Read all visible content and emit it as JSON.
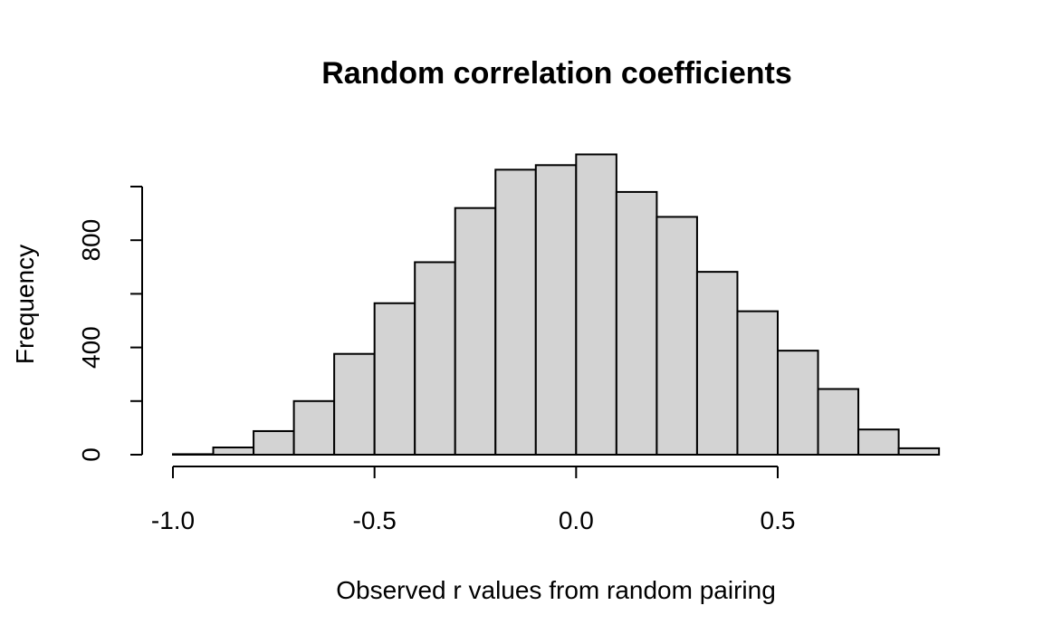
{
  "chart_data": {
    "type": "bar",
    "title": "Random correlation coefficients",
    "xlabel": "Observed r values from random pairing",
    "ylabel": "Frequency",
    "bin_edges": [
      -1.0,
      -0.9,
      -0.8,
      -0.7,
      -0.6,
      -0.5,
      -0.4,
      -0.3,
      -0.2,
      -0.1,
      0.0,
      0.1,
      0.2,
      0.3,
      0.4,
      0.5,
      0.6,
      0.7,
      0.8,
      0.9
    ],
    "values": [
      2,
      27,
      88,
      200,
      376,
      565,
      718,
      920,
      1063,
      1080,
      1120,
      980,
      887,
      682,
      535,
      388,
      245,
      94,
      24
    ],
    "xlim": [
      -1.0,
      0.9
    ],
    "ylim": [
      0,
      1120
    ],
    "x_ticks": [
      -1.0,
      -0.5,
      0.0,
      0.5
    ],
    "x_tick_labels": [
      "-1.0",
      "-0.5",
      "0.0",
      "0.5"
    ],
    "y_ticks": [
      0,
      200,
      400,
      600,
      800,
      1000
    ],
    "y_tick_labels": [
      "0",
      "",
      "400",
      "",
      "800",
      ""
    ],
    "bar_color": "#d3d3d3",
    "edge_color": "#000000",
    "grid": false,
    "legend": "none"
  }
}
